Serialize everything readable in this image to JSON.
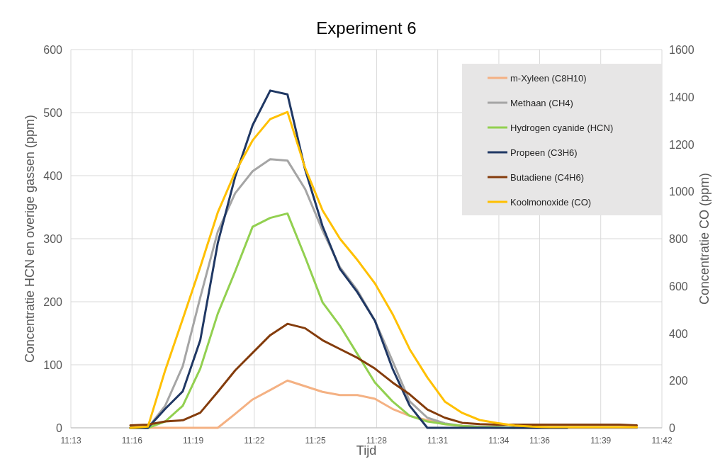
{
  "chart_data": {
    "type": "line",
    "title": "Experiment 6",
    "xlabel": "Tijd",
    "ylabel": "Concentratie HCN en overige gassen (ppm)",
    "y2label": "Concentratie CO (ppm)",
    "x": [
      11.2653,
      11.2797,
      11.2938,
      11.3082,
      11.3225,
      11.3368,
      11.351,
      11.3653,
      11.3797,
      11.3938,
      11.4082,
      11.4225,
      11.4367,
      11.451,
      11.4653,
      11.4797,
      11.4938,
      11.5082,
      11.5225,
      11.5367,
      11.551,
      11.5653,
      11.5797,
      11.5938,
      11.6082,
      11.6225,
      11.6367,
      11.651,
      11.6653,
      11.6795
    ],
    "xlim": [
      11.21667,
      11.7
    ],
    "xticks": [
      {
        "value": 11.21667,
        "label": "11:13"
      },
      {
        "value": 11.26667,
        "label": "11:16"
      },
      {
        "value": 11.31667,
        "label": "11:19"
      },
      {
        "value": 11.36667,
        "label": "11:22"
      },
      {
        "value": 11.41667,
        "label": "11:25"
      },
      {
        "value": 11.46667,
        "label": "11:28"
      },
      {
        "value": 11.51667,
        "label": "11:31"
      },
      {
        "value": 11.56667,
        "label": "11:34"
      },
      {
        "value": 11.6,
        "label": "11:36"
      },
      {
        "value": 11.65,
        "label": "11:39"
      },
      {
        "value": 11.7,
        "label": "11:42"
      }
    ],
    "ylim": [
      0,
      600
    ],
    "yticks": [
      0,
      100,
      200,
      300,
      400,
      500,
      600
    ],
    "y2lim": [
      0,
      1600
    ],
    "y2ticks": [
      0,
      200,
      400,
      600,
      800,
      1000,
      1200,
      1400,
      1600
    ],
    "grid": true,
    "legend": "top right",
    "series": [
      {
        "name": "m-Xyleen (C8H10)",
        "color": "#f4b183",
        "values": [
          0,
          0,
          0,
          0,
          0,
          0,
          22,
          45,
          60,
          75,
          66,
          57,
          52,
          52,
          46,
          30,
          19,
          12,
          6,
          3,
          1,
          0,
          0,
          0,
          0,
          0,
          0,
          0,
          0,
          0
        ]
      },
      {
        "name": "Methaan (CH4)",
        "color": "#a5a5a5",
        "values": [
          0,
          0,
          35,
          98,
          207,
          311,
          372,
          407,
          426,
          424,
          379,
          313,
          255,
          218,
          170,
          106,
          42,
          16,
          7,
          3,
          2,
          1,
          0,
          0,
          0,
          0,
          0,
          0,
          0,
          0
        ]
      },
      {
        "name": "Hydrogen cyanide (HCN)",
        "color": "#92d050",
        "values": [
          0,
          0,
          10,
          35,
          94,
          181,
          248,
          319,
          333,
          340,
          271,
          199,
          162,
          117,
          72,
          42,
          19,
          10,
          6,
          3,
          1,
          1,
          0,
          null,
          null,
          null,
          null,
          null,
          null,
          null
        ]
      },
      {
        "name": "Propeen (C3H6)",
        "color": "#203864",
        "values": [
          0,
          0,
          30,
          58,
          139,
          293,
          398,
          480,
          535,
          529,
          410,
          320,
          252,
          215,
          170,
          94,
          35,
          0,
          0,
          0,
          0,
          0,
          0,
          0,
          0,
          0,
          null,
          null,
          null,
          null
        ]
      },
      {
        "name": "Butadiene (C4H6)",
        "color": "#843c0c",
        "values": [
          4,
          5,
          10,
          12,
          24,
          57,
          91,
          119,
          147,
          165,
          158,
          139,
          125,
          111,
          94,
          72,
          53,
          29,
          16,
          8,
          6,
          5,
          5,
          5,
          5,
          5,
          5,
          5,
          5,
          4
        ]
      },
      {
        "name": "Koolmonoxide (CO)",
        "color": "#ffc000",
        "axis": "y2",
        "values": [
          0,
          5,
          243,
          461,
          680,
          911,
          1081,
          1216,
          1306,
          1336,
          1100,
          920,
          800,
          710,
          611,
          482,
          332,
          213,
          111,
          63,
          33,
          20,
          10,
          5,
          3,
          3,
          3,
          3,
          3,
          3
        ]
      }
    ]
  }
}
